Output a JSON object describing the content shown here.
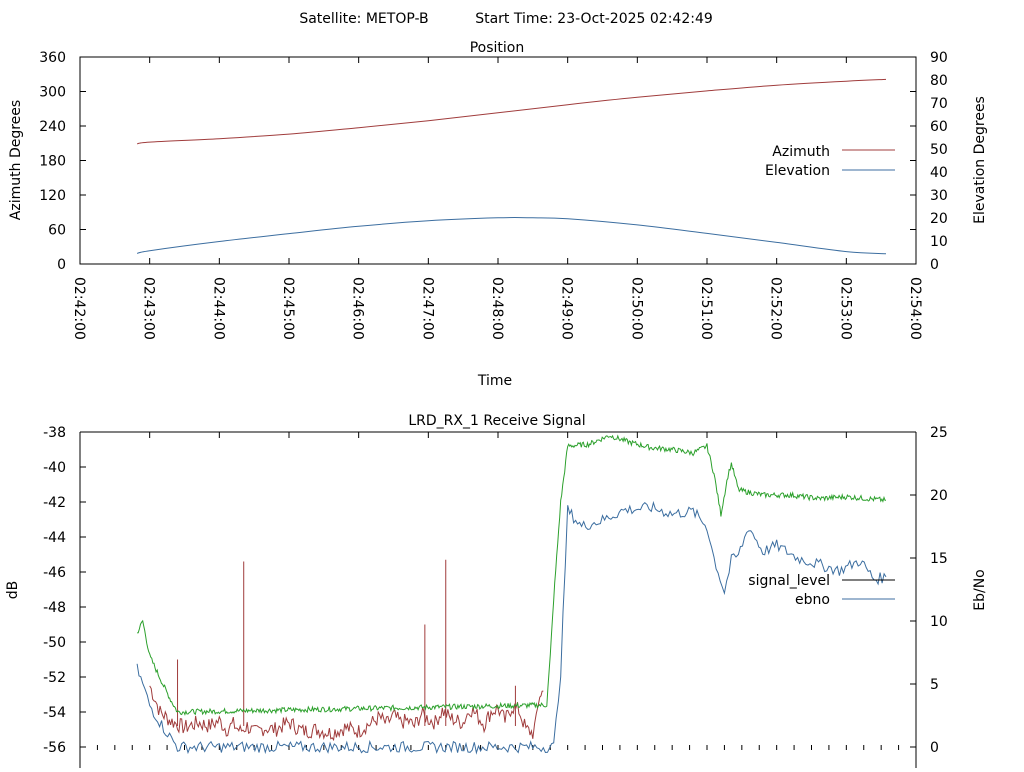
{
  "header": {
    "satellite": "Satellite: METOP-B",
    "start_time": "Start Time: 23-Oct-2025 02:42:49"
  },
  "chart_data": [
    {
      "type": "line",
      "title": "Position",
      "xlabel": "Time",
      "ylabel": "Azimuth Degrees",
      "y2label": "Elevation Degrees",
      "x_ticks": [
        "02:42:00",
        "02:43:00",
        "02:44:00",
        "02:45:00",
        "02:46:00",
        "02:47:00",
        "02:48:00",
        "02:49:00",
        "02:50:00",
        "02:51:00",
        "02:52:00",
        "02:53:00",
        "02:54:00"
      ],
      "xlim_min": [
        0,
        12
      ],
      "ylim": [
        0,
        360
      ],
      "y_ticks": [
        "0",
        "60",
        "120",
        "180",
        "240",
        "300",
        "360"
      ],
      "y2lim": [
        0,
        90
      ],
      "y2_ticks": [
        "0",
        "10",
        "20",
        "30",
        "40",
        "50",
        "60",
        "70",
        "80",
        "90"
      ],
      "legend_position": "right",
      "series": [
        {
          "name": "Azimuth",
          "axis": "y",
          "color": "#a03c3c",
          "x": [
            0.82,
            1,
            2,
            3,
            4,
            5,
            6,
            7,
            8,
            9,
            10,
            11,
            11.57
          ],
          "y": [
            209,
            212,
            218,
            226,
            237,
            249,
            263,
            277,
            290,
            301,
            311,
            318,
            321
          ]
        },
        {
          "name": "Elevation",
          "axis": "y2",
          "color": "#3c6ea0",
          "x": [
            0.82,
            1,
            2,
            3,
            4,
            5,
            6,
            6.5,
            7,
            8,
            9,
            10,
            11,
            11.57
          ],
          "y": [
            4.6,
            5.8,
            9.8,
            13.2,
            16.4,
            18.8,
            20.1,
            20.1,
            19.7,
            17.0,
            13.3,
            9.4,
            5.4,
            4.5
          ]
        }
      ]
    },
    {
      "type": "line",
      "title": "LRD_RX_1 Receive Signal",
      "ylabel": "dB",
      "y2label": "Eb/No",
      "xlim_min": [
        0,
        12
      ],
      "ylim": [
        -56,
        -38
      ],
      "y_ticks": [
        "-38",
        "-40",
        "-42",
        "-44",
        "-46",
        "-48",
        "-50",
        "-52",
        "-54",
        "-56"
      ],
      "y2lim": [
        0,
        25
      ],
      "y2_ticks": [
        "0",
        "5",
        "10",
        "15",
        "20",
        "25"
      ],
      "legend_position": "right",
      "legend": [
        {
          "name": "signal_level",
          "color": "#000000"
        },
        {
          "name": "ebno",
          "color": "#3c6ea0"
        }
      ],
      "series": [
        {
          "name": "signal_level (low)",
          "axis": "y",
          "color": "#a03c3c",
          "x": [
            1.0,
            1.15,
            1.3,
            1.5,
            1.7,
            1.85,
            2.0,
            2.1,
            2.2,
            2.3,
            2.4,
            2.5,
            2.65,
            2.8,
            3.0,
            3.2,
            3.4,
            3.6,
            3.8,
            4.0,
            4.1,
            4.2,
            4.3,
            4.4,
            4.5,
            4.6,
            4.7,
            4.8,
            4.9,
            5.0,
            5.1,
            5.2,
            5.3,
            5.4,
            5.5,
            5.6,
            5.7,
            5.8,
            5.9,
            6.0,
            6.1,
            6.2,
            6.3,
            6.4,
            6.5,
            6.55,
            6.6,
            6.65
          ],
          "y": [
            -52.5,
            -54,
            -54.5,
            -54.9,
            -54.6,
            -54.8,
            -54.5,
            -55.0,
            -54.7,
            -55.1,
            -54.8,
            -55.2,
            -54.9,
            -55.0,
            -54.6,
            -55.1,
            -55.0,
            -55.2,
            -54.9,
            -55.1,
            -54.8,
            -54.6,
            -54.3,
            -54.7,
            -54.2,
            -54.6,
            -54.5,
            -54.8,
            -54.1,
            -54.4,
            -54.6,
            -53.9,
            -54.3,
            -54.5,
            -54.6,
            -53.8,
            -54.2,
            -54.7,
            -54.0,
            -53.8,
            -54.5,
            -53.7,
            -53.9,
            -55.0,
            -55.2,
            -54.5,
            -53.0,
            -52.8
          ],
          "spikes": [
            {
              "x": 1.4,
              "y": -51.0
            },
            {
              "x": 2.35,
              "y": -45.4
            },
            {
              "x": 4.95,
              "y": -49.0
            },
            {
              "x": 5.25,
              "y": -45.3
            },
            {
              "x": 6.25,
              "y": -52.5
            }
          ]
        },
        {
          "name": "signal_level (high)",
          "axis": "y",
          "color": "#2ca02c",
          "x": [
            0.82,
            0.9,
            1.0,
            1.2,
            1.3,
            1.4,
            6.7,
            6.75,
            6.8,
            6.9,
            7.0,
            7.3,
            7.6,
            7.9,
            8.2,
            8.5,
            8.8,
            9.0,
            9.1,
            9.2,
            9.3,
            9.35,
            9.45,
            9.55,
            9.8,
            10.2,
            10.6,
            11.0,
            11.57
          ],
          "y": [
            -49.5,
            -48.8,
            -50.8,
            -52.5,
            -53.3,
            -54.0,
            -53.6,
            -50.8,
            -47.5,
            -42.0,
            -38.8,
            -38.7,
            -38.2,
            -38.6,
            -38.9,
            -39.0,
            -39.2,
            -38.8,
            -40.4,
            -42.7,
            -40.5,
            -39.8,
            -41.3,
            -41.4,
            -41.6,
            -41.6,
            -41.8,
            -41.7,
            -41.9
          ]
        },
        {
          "name": "ebno",
          "axis": "y2",
          "color": "#3c6ea0",
          "x": [
            0.82,
            0.9,
            1.0,
            1.2,
            1.4,
            6.8,
            6.9,
            7.0,
            7.2,
            7.5,
            7.8,
            8.2,
            8.5,
            8.8,
            9.0,
            9.1,
            9.25,
            9.35,
            9.45,
            9.6,
            9.8,
            10.0,
            10.3,
            10.6,
            10.9,
            11.2,
            11.4,
            11.57
          ],
          "y": [
            6.2,
            5.0,
            3.3,
            1.5,
            0.0,
            0.0,
            6.0,
            18.8,
            17.5,
            18.0,
            18.8,
            19.0,
            18.5,
            18.7,
            17.5,
            15.0,
            12.3,
            14.8,
            15.2,
            17.5,
            15.5,
            16.0,
            15.0,
            14.5,
            14.0,
            14.8,
            13.3,
            13.5
          ]
        }
      ]
    }
  ]
}
